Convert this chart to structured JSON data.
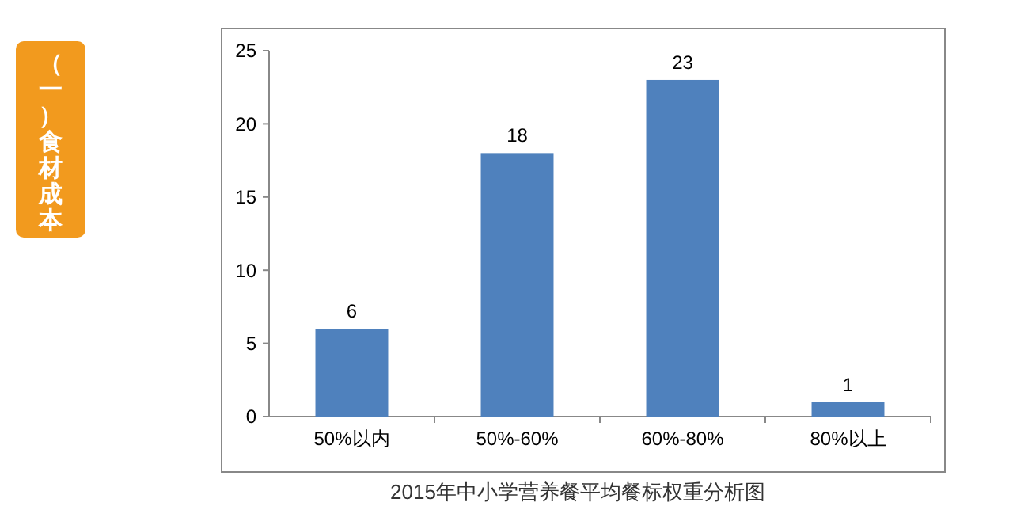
{
  "chart_data": {
    "type": "bar",
    "categories": [
      "50%以内",
      "50%-60%",
      "60%-80%",
      "80%以上"
    ],
    "values": [
      6,
      18,
      23,
      1
    ],
    "color": "#4f81bd",
    "ylim": [
      0,
      25
    ],
    "yticks": [
      0,
      5,
      10,
      15,
      20,
      25
    ],
    "data_labels": true,
    "grid": false,
    "annotations": [
      "2015年中小学营养餐平均餐标权重分析图",
      "（一）食材成本"
    ]
  }
}
